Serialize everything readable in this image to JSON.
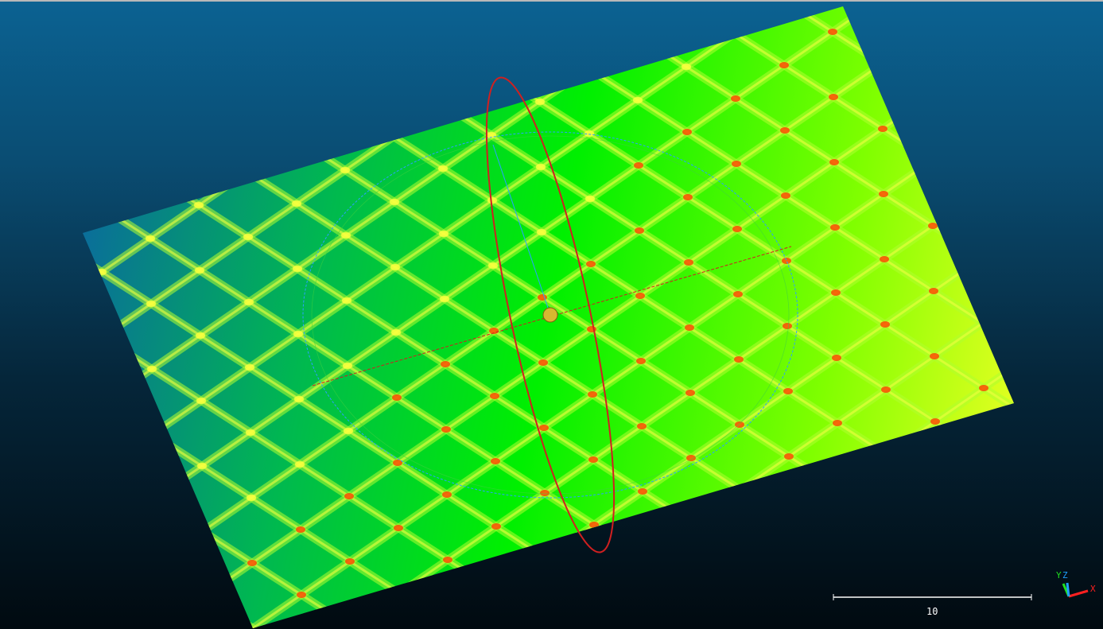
{
  "viewport": {
    "background_top": "#0b6292",
    "background_bottom": "#010a10",
    "scale_bar": {
      "label": "10"
    },
    "axis_triad": {
      "x_label": "X",
      "y_label": "Y",
      "z_label": "Z",
      "x_color": "#ff2020",
      "y_color": "#20e020",
      "z_color": "#20a0ff"
    },
    "surface": {
      "colormap": [
        "#0a6e9a",
        "#00c850",
        "#00ff00",
        "#c8ff00",
        "#ffff00",
        "#ff3000"
      ]
    },
    "transform_gizmo": {
      "ring_color_blue": "#2aa0ff",
      "ring_color_red": "#d02020",
      "center_color": "#e0c030"
    }
  }
}
